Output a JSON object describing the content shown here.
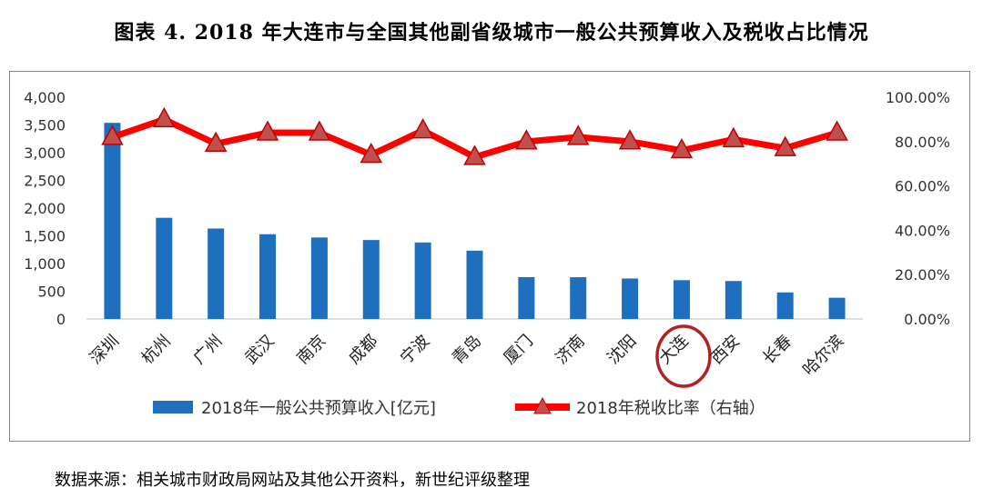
{
  "title": "图表 4. 2018 年大连市与全国其他副省级城市一般公共预算收入及税收占比情况",
  "source": "数据来源：相关城市财政局网站及其他公开资料，新世纪评级整理",
  "colors": {
    "bar": "#1f6fbf",
    "line": "#ff0000",
    "marker": "#c0504d"
  },
  "chart_data": {
    "type": "bar",
    "categories": [
      "深圳",
      "杭州",
      "广州",
      "武汉",
      "南京",
      "成都",
      "宁波",
      "青岛",
      "厦门",
      "济南",
      "沈阳",
      "大连",
      "西安",
      "长春",
      "哈尔滨"
    ],
    "highlight_category": "大连",
    "series": [
      {
        "name": "2018年一般公共预算收入[亿元]",
        "type": "bar",
        "axis": "left",
        "values": [
          3538,
          1825,
          1632,
          1529,
          1470,
          1424,
          1380,
          1232,
          755,
          753,
          730,
          700,
          685,
          479,
          383
        ]
      },
      {
        "name": "2018年税收比率（右轴）",
        "type": "line",
        "axis": "right",
        "marker": "triangle",
        "values": [
          0.82,
          0.9,
          0.79,
          0.84,
          0.84,
          0.74,
          0.85,
          0.73,
          0.8,
          0.82,
          0.8,
          0.76,
          0.81,
          0.77,
          0.84
        ]
      }
    ],
    "ylim": [
      0,
      4000
    ],
    "y_ticks": [
      "4,000",
      "3,500",
      "3,000",
      "2,500",
      "2,000",
      "1,500",
      "1,000",
      "500",
      "0"
    ],
    "y2lim": [
      0,
      1.0
    ],
    "y2_ticks": [
      "100.00%",
      "80.00%",
      "60.00%",
      "40.00%",
      "20.00%",
      "0.00%"
    ],
    "legend_position": "bottom",
    "grid": false
  }
}
